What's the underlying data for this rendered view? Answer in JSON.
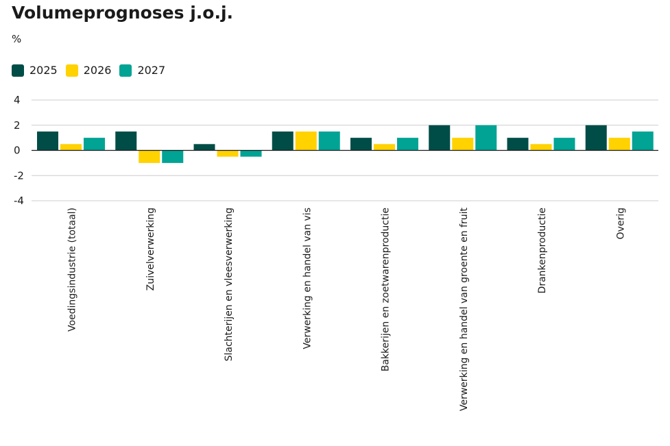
{
  "chart_data": {
    "type": "bar",
    "title": "Volumeprognoses j.o.j.",
    "ylabel": "%",
    "xlabel": "",
    "ylim": [
      -4,
      4
    ],
    "yticks": [
      4,
      2,
      0,
      -2,
      -4
    ],
    "ytick_labels": [
      "4",
      "2",
      "0",
      "-2",
      "-4"
    ],
    "grid": true,
    "legend_position": "top-left",
    "categories": [
      "Voedingsindustrie (totaal)",
      "Zuivelverwerking",
      "Slachterijen en vleesverwerking",
      "Verwerking en handel van vis",
      "Bakkerijen en zoetwarenproductie",
      "Verwerking en handel van groente en fruit",
      "Drankenproductie",
      "Overig"
    ],
    "series": [
      {
        "name": "2025",
        "color": "#004d47",
        "values": [
          1.5,
          1.5,
          0.5,
          1.5,
          1.0,
          2.0,
          1.0,
          2.0
        ]
      },
      {
        "name": "2026",
        "color": "#ffd200",
        "values": [
          0.5,
          -1.0,
          -0.5,
          1.5,
          0.5,
          1.0,
          0.5,
          1.0
        ]
      },
      {
        "name": "2027",
        "color": "#00a394",
        "values": [
          1.0,
          -1.0,
          -0.5,
          1.5,
          1.0,
          2.0,
          1.0,
          1.5
        ]
      }
    ]
  }
}
